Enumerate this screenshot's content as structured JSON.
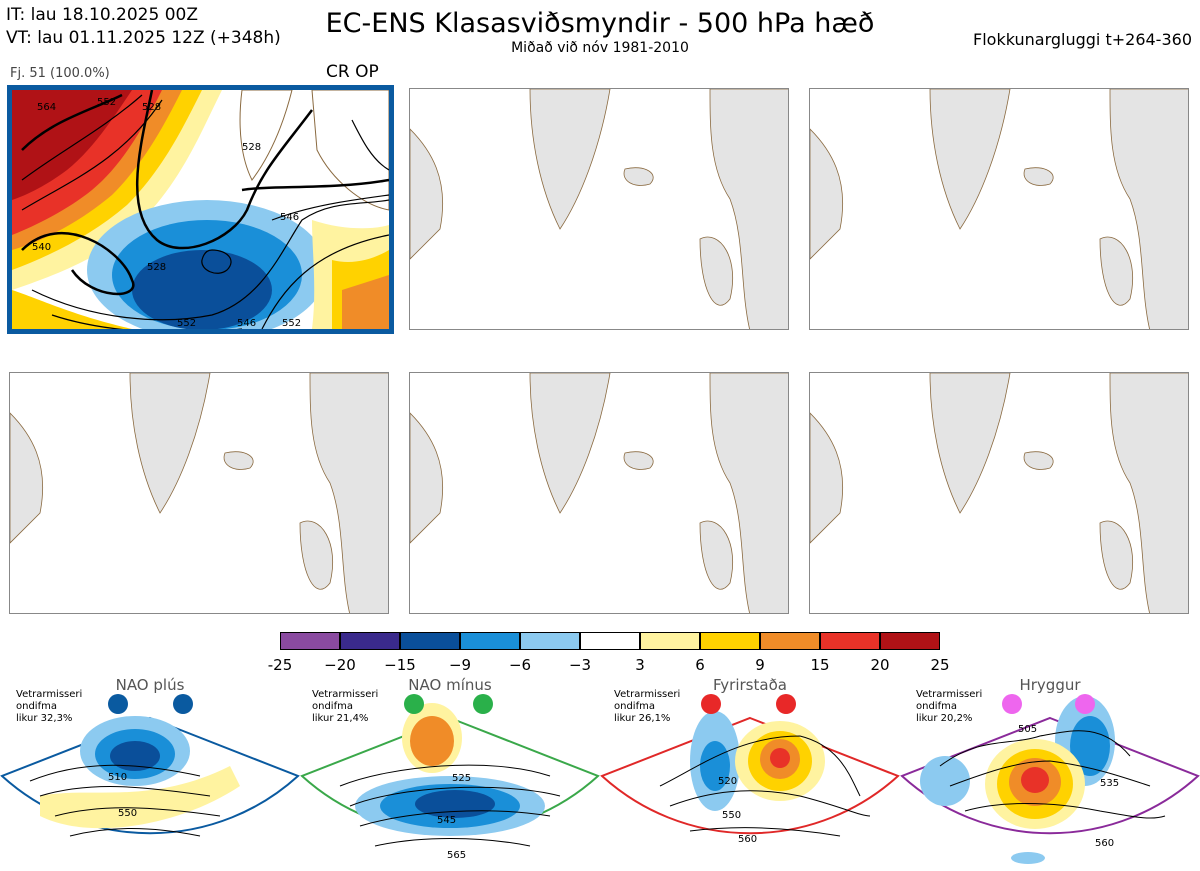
{
  "header": {
    "it": "IT: lau 18.10.2025 00Z",
    "vt": "VT: lau 01.11.2025 12Z  (+348h)",
    "title": "EC-ENS Klasasviðsmyndir - 500 hPa hæð",
    "subtitle": "Miðað við nóv 1981-2010",
    "window": "Flokkunargluggi t+264-360"
  },
  "panels": [
    {
      "id": "1",
      "cluster_label": "Fj. 51 (100.0%)",
      "regime_label": "CR OP",
      "selected": true,
      "contour_labels": [
        "564",
        "552",
        "528",
        "528",
        "540",
        "546",
        "528",
        "552",
        "546",
        "552"
      ]
    },
    {
      "id": "2"
    },
    {
      "id": "3"
    },
    {
      "id": "4"
    },
    {
      "id": "5"
    },
    {
      "id": "6"
    }
  ],
  "colorbar": {
    "ticks": [
      "-25",
      "−20",
      "−15",
      "−9",
      "−6",
      "−3",
      "3",
      "6",
      "9",
      "15",
      "20",
      "25"
    ],
    "colors": [
      "#8a4aa0",
      "#3a2a8c",
      "#0a4f9a",
      "#1a8fd8",
      "#8ccaf0",
      "#ffffff",
      "#fff3a0",
      "#ffd200",
      "#f08c28",
      "#e83228",
      "#b01216"
    ]
  },
  "regimes": [
    {
      "name": "NAO plús",
      "info": [
        "Vetrarmisseri",
        "ondifma",
        "likur 32,3%"
      ],
      "border": "#0a5aa0",
      "dot": "#0a5aa0",
      "labels": [
        "510",
        "550"
      ]
    },
    {
      "name": "NAO mínus",
      "info": [
        "Vetrarmisseri",
        "ondifma",
        "likur 21,4%"
      ],
      "border": "#3aa84a",
      "dot": "#2ab04a",
      "labels": [
        "525",
        "545",
        "565"
      ]
    },
    {
      "name": "Fyrirstaða",
      "info": [
        "Vetrarmisseri",
        "ondifma",
        "likur 26,1%"
      ],
      "border": "#e02828",
      "dot": "#e82828",
      "labels": [
        "520",
        "550",
        "560"
      ]
    },
    {
      "name": "Hryggur",
      "info": [
        "Vetrarmisseri",
        "ondifma",
        "likur 20,2%"
      ],
      "border": "#8a2a9a",
      "dot": "#ee66ee",
      "labels": [
        "505",
        "535",
        "560"
      ]
    }
  ]
}
